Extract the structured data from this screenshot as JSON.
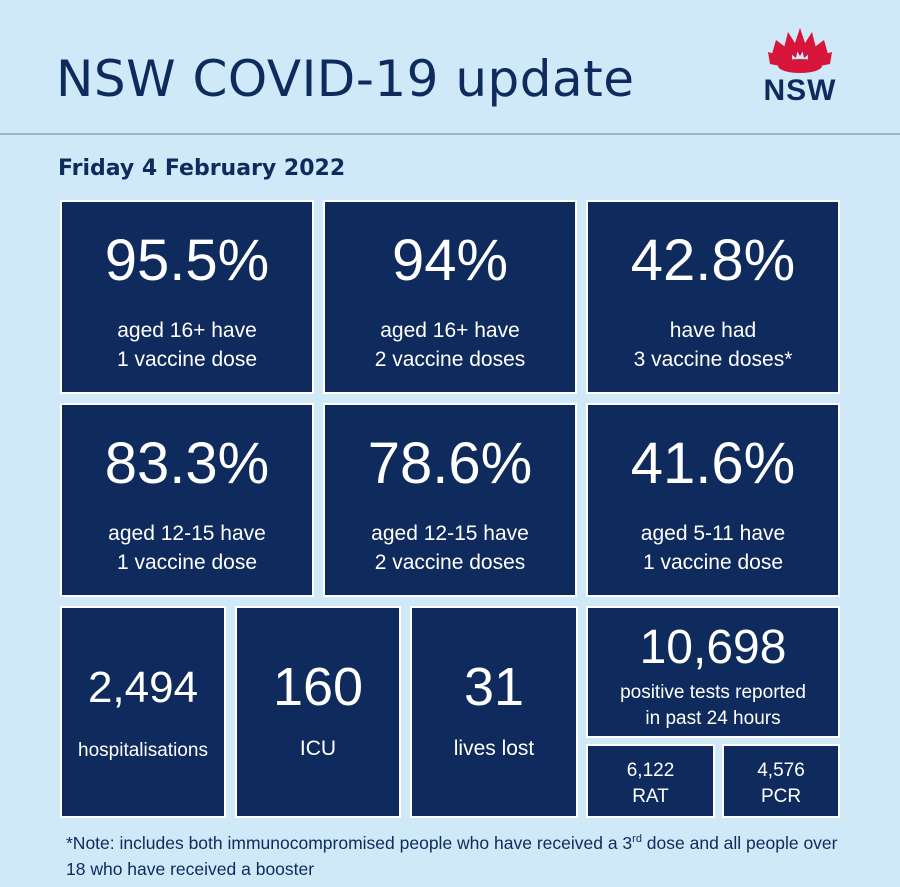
{
  "header": {
    "title": "NSW COVID-19 update",
    "logo_text": "NSW"
  },
  "date": "Friday 4 February 2022",
  "stats": [
    {
      "value": "95.5%",
      "line1": "aged 16+ have",
      "line2": "1 vaccine dose"
    },
    {
      "value": "94%",
      "line1": "aged 16+ have",
      "line2": "2 vaccine doses"
    },
    {
      "value": "42.8%",
      "line1": "have had",
      "line2": "3 vaccine doses*"
    },
    {
      "value": "83.3%",
      "line1": "aged 12-15 have",
      "line2": "1 vaccine dose"
    },
    {
      "value": "78.6%",
      "line1": "aged 12-15 have",
      "line2": "2 vaccine doses"
    },
    {
      "value": "41.6%",
      "line1": "aged 5-11 have",
      "line2": "1 vaccine dose"
    }
  ],
  "hospital": {
    "value": "2,494",
    "label": "hospitalisations"
  },
  "icu": {
    "value": "160",
    "label": "ICU"
  },
  "deaths": {
    "value": "31",
    "label": "lives lost"
  },
  "tests": {
    "value": "10,698",
    "line1": "positive tests reported",
    "line2": "in past 24 hours",
    "rat": {
      "value": "6,122",
      "label": "RAT"
    },
    "pcr": {
      "value": "4,576",
      "label": "PCR"
    }
  },
  "note": {
    "part1": "*Note: includes both immunocompromised people who have received a 3",
    "sup": "rd",
    "part2": " dose and all people over 18 who have received a booster"
  },
  "colors": {
    "background": "#cfe9f8",
    "tile": "#0f2a5c",
    "logo_red": "#d7153a"
  }
}
